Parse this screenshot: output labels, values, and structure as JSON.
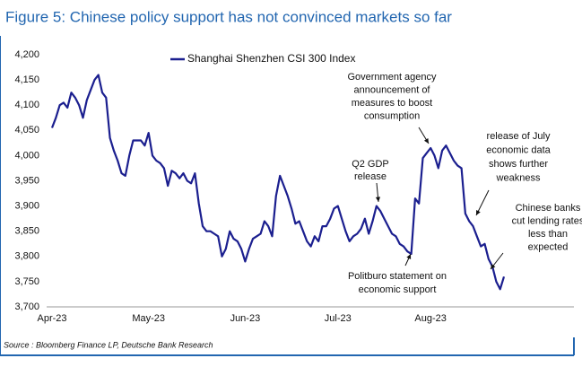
{
  "chart_data": {
    "type": "line",
    "title": "Figure 5: Chinese policy support has not convinced markets so far",
    "source": "Source : Bloomberg Finance LP, Deutsche Bank Research",
    "categories": [
      "Apr-23",
      null,
      null,
      null,
      null,
      null,
      null,
      null,
      null,
      null,
      null,
      null,
      null,
      null,
      null,
      null,
      null,
      null,
      null,
      null,
      null,
      null,
      null,
      null,
      null,
      "May-23",
      null,
      null,
      null,
      null,
      null,
      null,
      null,
      null,
      null,
      null,
      null,
      null,
      null,
      null,
      null,
      null,
      null,
      null,
      null,
      null,
      null,
      null,
      null,
      null,
      "Jun-23",
      null,
      null,
      null,
      null,
      null,
      null,
      null,
      null,
      null,
      null,
      null,
      null,
      null,
      null,
      null,
      null,
      null,
      null,
      null,
      null,
      null,
      null,
      null,
      "Jul-23",
      null,
      null,
      null,
      null,
      null,
      null,
      null,
      null,
      null,
      null,
      null,
      null,
      null,
      null,
      null,
      null,
      null,
      null,
      null,
      null,
      null,
      null,
      null,
      "Aug-23",
      null,
      null,
      null,
      null,
      null,
      null,
      null,
      null,
      null,
      null,
      null,
      null,
      null,
      null,
      null,
      null,
      null,
      null,
      null
    ],
    "series": [
      {
        "name": "Shanghai Shenzhen CSI 300 Index",
        "color": "#1b1f8f",
        "values": [
          4055,
          4075,
          4100,
          4105,
          4095,
          4125,
          4115,
          4100,
          4075,
          4110,
          4130,
          4150,
          4160,
          4125,
          4115,
          4035,
          4010,
          3990,
          3965,
          3960,
          4000,
          4030,
          4030,
          4030,
          4020,
          4045,
          4000,
          3990,
          3985,
          3975,
          3940,
          3970,
          3965,
          3955,
          3965,
          3950,
          3945,
          3965,
          3905,
          3860,
          3850,
          3850,
          3845,
          3840,
          3800,
          3815,
          3850,
          3835,
          3830,
          3815,
          3790,
          3815,
          3835,
          3840,
          3845,
          3870,
          3860,
          3840,
          3920,
          3960,
          3940,
          3920,
          3895,
          3865,
          3870,
          3850,
          3830,
          3820,
          3840,
          3830,
          3860,
          3860,
          3875,
          3895,
          3900,
          3875,
          3850,
          3830,
          3840,
          3845,
          3855,
          3875,
          3845,
          3870,
          3900,
          3890,
          3875,
          3860,
          3845,
          3840,
          3825,
          3820,
          3810,
          3805,
          3915,
          3905,
          3995,
          4005,
          4015,
          4000,
          3975,
          4010,
          4020,
          4005,
          3990,
          3980,
          3975,
          3885,
          3870,
          3860,
          3840,
          3820,
          3825,
          3795,
          3780,
          3750,
          3735,
          3760
        ]
      }
    ],
    "ylim": [
      3700,
      4200
    ],
    "yticks": [
      {
        "value": 3700,
        "label": "3,700"
      },
      {
        "value": 3750,
        "label": "3,750"
      },
      {
        "value": 3800,
        "label": "3,800"
      },
      {
        "value": 3850,
        "label": "3,850"
      },
      {
        "value": 3900,
        "label": "3,900"
      },
      {
        "value": 3950,
        "label": "3,950"
      },
      {
        "value": 4000,
        "label": "4,000"
      },
      {
        "value": 4050,
        "label": "4,050"
      },
      {
        "value": 4100,
        "label": "4,100"
      },
      {
        "value": 4150,
        "label": "4,150"
      },
      {
        "value": 4200,
        "label": "4,200"
      }
    ],
    "grid": false,
    "annotations": [
      {
        "lines": [
          "Government agency",
          "announcement of",
          "measures to boost",
          "consumption"
        ]
      },
      {
        "lines": [
          "Q2 GDP",
          "release"
        ]
      },
      {
        "lines": [
          "Politburo statement on",
          "economic support"
        ]
      },
      {
        "lines": [
          "release of July",
          "economic data",
          "shows further",
          "weakness"
        ]
      },
      {
        "lines": [
          "Chinese banks",
          "cut lending rates",
          "less than",
          "expected"
        ]
      }
    ]
  }
}
